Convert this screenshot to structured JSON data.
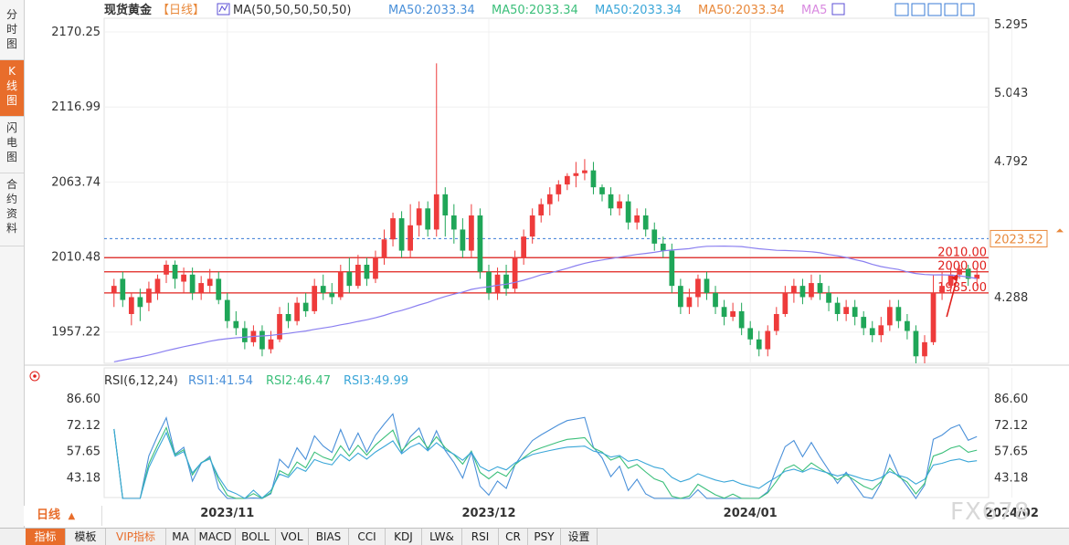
{
  "left_tabs": [
    {
      "chars": [
        "分",
        "时",
        "图"
      ],
      "active": false
    },
    {
      "chars": [
        "K",
        "线",
        "图"
      ],
      "active": true
    },
    {
      "chars": [
        "闪",
        "电",
        "图"
      ],
      "active": false
    },
    {
      "chars": [
        "合",
        "约",
        "资",
        "料"
      ],
      "active": false
    }
  ],
  "bottom_tabs": [
    "指标",
    "模板",
    "VIP指标",
    "MA",
    "MACD",
    "BOLL",
    "VOL",
    "BIAS",
    "CCI",
    "KDJ",
    "LW&",
    "RSI",
    "CR",
    "PSY",
    "设置"
  ],
  "period_label": "日线",
  "period_arrow": "▲",
  "watermark": "FX678",
  "header": {
    "symbol": "现货黄金",
    "period_tag": "【日线】",
    "ma_label": "MA(50,50,50,50,50)",
    "ma_values": [
      {
        "text": "MA50:2033.34",
        "color": "#4a90d9"
      },
      {
        "text": "MA50:2033.34",
        "color": "#3bbf7a"
      },
      {
        "text": "MA50:2033.34",
        "color": "#3aa6d8"
      },
      {
        "text": "MA50:2033.34",
        "color": "#e8883a"
      },
      {
        "text": "MA5",
        "color": "#d98ae0"
      }
    ]
  },
  "rsi_header": {
    "label": "RSI(6,12,24)",
    "values": [
      {
        "text": "RSI1:41.54",
        "color": "#4a90d9"
      },
      {
        "text": "RSI2:46.47",
        "color": "#3bbf7a"
      },
      {
        "text": "RSI3:49.99",
        "color": "#3aa6d8"
      }
    ]
  },
  "chart_data": {
    "type": "candlestick",
    "y_left_ticks": [
      "2170.25",
      "2116.99",
      "2063.74",
      "2010.48",
      "1957.22"
    ],
    "y_right_ticks": [
      "5.295",
      "5.043",
      "4.792",
      "4.288"
    ],
    "ylim": [
      1935,
      2180
    ],
    "x_labels": [
      {
        "text": "2023/11",
        "index": 13
      },
      {
        "text": "2023/12",
        "index": 43
      },
      {
        "text": "2024/01",
        "index": 73
      },
      {
        "text": "2024/02",
        "index": 103
      }
    ],
    "current_price": "2023.52",
    "hlines": [
      {
        "value": 2010,
        "label": "2010.00"
      },
      {
        "value": 2000,
        "label": "2000.00"
      },
      {
        "value": 1985,
        "label": "1985.00"
      }
    ],
    "candles": [
      [
        1985,
        1990,
        1995,
        1975
      ],
      [
        1995,
        1980,
        2000,
        1975
      ],
      [
        1970,
        1982,
        1985,
        1962
      ],
      [
        1982,
        1975,
        1988,
        1965
      ],
      [
        1978,
        1988,
        1993,
        1972
      ],
      [
        1985,
        1995,
        1998,
        1980
      ],
      [
        1998,
        2005,
        2008,
        1992
      ],
      [
        2005,
        1995,
        2008,
        1988
      ],
      [
        1993,
        1998,
        2003,
        1985
      ],
      [
        1998,
        1985,
        2003,
        1980
      ],
      [
        1985,
        1992,
        1997,
        1980
      ],
      [
        1990,
        1995,
        2002,
        1985
      ],
      [
        1995,
        1980,
        2000,
        1977
      ],
      [
        1980,
        1965,
        1985,
        1960
      ],
      [
        1965,
        1960,
        1972,
        1955
      ],
      [
        1960,
        1950,
        1965,
        1945
      ],
      [
        1950,
        1958,
        1962,
        1947
      ],
      [
        1958,
        1945,
        1962,
        1940
      ],
      [
        1945,
        1952,
        1958,
        1942
      ],
      [
        1952,
        1970,
        1975,
        1950
      ],
      [
        1970,
        1965,
        1978,
        1960
      ],
      [
        1965,
        1978,
        1982,
        1962
      ],
      [
        1978,
        1972,
        1985,
        1968
      ],
      [
        1972,
        1990,
        1995,
        1970
      ],
      [
        1990,
        1985,
        1998,
        1980
      ],
      [
        1985,
        1982,
        1992,
        1977
      ],
      [
        1982,
        2000,
        2005,
        1980
      ],
      [
        2000,
        1990,
        2010,
        1985
      ],
      [
        1990,
        2005,
        2012,
        1988
      ],
      [
        2005,
        1995,
        2010,
        1990
      ],
      [
        1995,
        2010,
        2015,
        1992
      ],
      [
        2010,
        2023,
        2030,
        2005
      ],
      [
        2023,
        2038,
        2042,
        2018
      ],
      [
        2038,
        2015,
        2043,
        2010
      ],
      [
        2015,
        2033,
        2048,
        2010
      ],
      [
        2033,
        2045,
        2050,
        2025
      ],
      [
        2045,
        2030,
        2050,
        2025
      ],
      [
        2030,
        2055,
        2148,
        2025
      ],
      [
        2055,
        2040,
        2060,
        2025
      ],
      [
        2040,
        2030,
        2048,
        2020
      ],
      [
        2030,
        2015,
        2038,
        2010
      ],
      [
        2015,
        2040,
        2048,
        2010
      ],
      [
        2040,
        2000,
        2045,
        1995
      ],
      [
        2000,
        1985,
        2005,
        1980
      ],
      [
        1985,
        1998,
        2003,
        1980
      ],
      [
        1998,
        1988,
        2005,
        1983
      ],
      [
        1988,
        2010,
        2015,
        1985
      ],
      [
        2010,
        2025,
        2030,
        2005
      ],
      [
        2025,
        2040,
        2045,
        2020
      ],
      [
        2040,
        2048,
        2052,
        2035
      ],
      [
        2048,
        2055,
        2060,
        2040
      ],
      [
        2055,
        2062,
        2065,
        2050
      ],
      [
        2062,
        2068,
        2070,
        2058
      ],
      [
        2068,
        2070,
        2078,
        2060
      ],
      [
        2070,
        2072,
        2080,
        2065
      ],
      [
        2072,
        2060,
        2078,
        2055
      ],
      [
        2060,
        2055,
        2062,
        2050
      ],
      [
        2055,
        2045,
        2060,
        2040
      ],
      [
        2045,
        2050,
        2055,
        2040
      ],
      [
        2050,
        2035,
        2055,
        2030
      ],
      [
        2035,
        2040,
        2045,
        2030
      ],
      [
        2040,
        2030,
        2045,
        2025
      ],
      [
        2030,
        2020,
        2035,
        2015
      ],
      [
        2020,
        2015,
        2025,
        2010
      ],
      [
        2015,
        1990,
        2020,
        1985
      ],
      [
        1990,
        1975,
        1995,
        1970
      ],
      [
        1975,
        1982,
        1988,
        1970
      ],
      [
        1982,
        1995,
        1998,
        1975
      ],
      [
        1995,
        1985,
        2000,
        1980
      ],
      [
        1985,
        1975,
        1990,
        1970
      ],
      [
        1975,
        1968,
        1980,
        1962
      ],
      [
        1968,
        1972,
        1978,
        1965
      ],
      [
        1972,
        1960,
        1978,
        1955
      ],
      [
        1960,
        1952,
        1965,
        1948
      ],
      [
        1952,
        1945,
        1958,
        1940
      ],
      [
        1945,
        1958,
        1962,
        1940
      ],
      [
        1958,
        1970,
        1975,
        1955
      ],
      [
        1970,
        1985,
        1990,
        1968
      ],
      [
        1985,
        1990,
        1995,
        1978
      ],
      [
        1990,
        1982,
        1995,
        1977
      ],
      [
        1982,
        1992,
        1998,
        1980
      ],
      [
        1992,
        1985,
        1998,
        1980
      ],
      [
        1985,
        1978,
        1990,
        1972
      ],
      [
        1978,
        1970,
        1982,
        1965
      ],
      [
        1970,
        1975,
        1980,
        1965
      ],
      [
        1975,
        1968,
        1980,
        1962
      ],
      [
        1968,
        1960,
        1972,
        1955
      ],
      [
        1960,
        1955,
        1965,
        1950
      ],
      [
        1955,
        1962,
        1968,
        1950
      ],
      [
        1962,
        1975,
        1980,
        1958
      ],
      [
        1975,
        1965,
        1980,
        1960
      ],
      [
        1965,
        1958,
        1970,
        1952
      ],
      [
        1958,
        1940,
        1962,
        1935
      ],
      [
        1940,
        1950,
        1955,
        1935
      ],
      [
        1950,
        1985,
        1998,
        1948
      ],
      [
        1985,
        1990,
        2000,
        1980
      ],
      [
        1990,
        1998,
        2002,
        1985
      ],
      [
        1998,
        2002,
        2005,
        1995
      ],
      [
        2002,
        1995,
        2005,
        1990
      ],
      [
        1995,
        1998,
        2003,
        1990
      ]
    ]
  }
}
